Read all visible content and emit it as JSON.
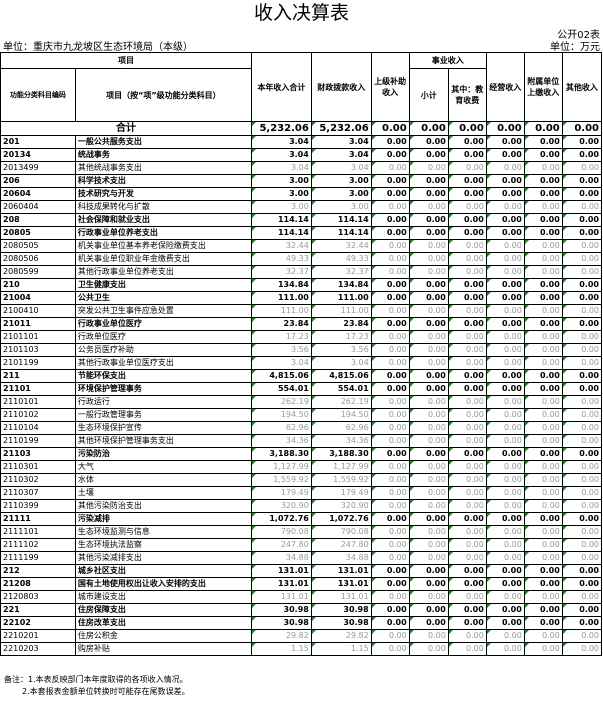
{
  "title": "收入决算表",
  "form_no": "公开02表",
  "unit_left": "单位：重庆市九龙坡区生态环境局（本级）",
  "unit_right": "单位：万元",
  "headers": {
    "item": "项目",
    "code": "功能分类科目编码",
    "name": "项目（按“项”级功能分类科目）",
    "total": "本年收入合计",
    "fiscal": "财政拨款收入",
    "superior": "上级补助收入",
    "business": "事业收入",
    "subtotal": "小计",
    "education": "其中：教育收费",
    "operating": "经营收入",
    "affiliated": "附属单位上缴收入",
    "other": "其他收入"
  },
  "total_row": {
    "label": "合计",
    "values": [
      "5,232.06",
      "5,232.06",
      "0.00",
      "0.00",
      "0.00",
      "0.00",
      "0.00",
      "0.00"
    ]
  },
  "rows": [
    {
      "level": 1,
      "code": "201",
      "name": "一般公共服务支出",
      "total": "3.04",
      "fiscal": "3.04"
    },
    {
      "level": 2,
      "code": "20134",
      "name": "统战事务",
      "total": "3.04",
      "fiscal": "3.04"
    },
    {
      "level": 3,
      "code": "2013499",
      "name": "其他统战事务支出",
      "total": "3.04",
      "fiscal": "3.04"
    },
    {
      "level": 1,
      "code": "206",
      "name": "科学技术支出",
      "total": "3.00",
      "fiscal": "3.00"
    },
    {
      "level": 2,
      "code": "20604",
      "name": "技术研究与开发",
      "total": "3.00",
      "fiscal": "3.00"
    },
    {
      "level": 3,
      "code": "2060404",
      "name": "科技成果转化与扩散",
      "total": "3.00",
      "fiscal": "3.00"
    },
    {
      "level": 1,
      "code": "208",
      "name": "社会保障和就业支出",
      "total": "114.14",
      "fiscal": "114.14"
    },
    {
      "level": 2,
      "code": "20805",
      "name": "行政事业单位养老支出",
      "total": "114.14",
      "fiscal": "114.14"
    },
    {
      "level": 3,
      "code": "2080505",
      "name": "机关事业单位基本养老保险缴费支出",
      "total": "32.44",
      "fiscal": "32.44"
    },
    {
      "level": 3,
      "code": "2080506",
      "name": "机关事业单位职业年金缴费支出",
      "total": "49.33",
      "fiscal": "49.33"
    },
    {
      "level": 3,
      "code": "2080599",
      "name": "其他行政事业单位养老支出",
      "total": "32.37",
      "fiscal": "32.37"
    },
    {
      "level": 1,
      "code": "210",
      "name": "卫生健康支出",
      "total": "134.84",
      "fiscal": "134.84"
    },
    {
      "level": 2,
      "code": "21004",
      "name": "公共卫生",
      "total": "111.00",
      "fiscal": "111.00"
    },
    {
      "level": 3,
      "code": "2100410",
      "name": "突发公共卫生事件应急处置",
      "total": "111.00",
      "fiscal": "111.00"
    },
    {
      "level": 2,
      "code": "21011",
      "name": "行政事业单位医疗",
      "total": "23.84",
      "fiscal": "23.84"
    },
    {
      "level": 3,
      "code": "2101101",
      "name": "行政单位医疗",
      "total": "17.23",
      "fiscal": "17.23"
    },
    {
      "level": 3,
      "code": "2101103",
      "name": "公务员医疗补助",
      "total": "3.56",
      "fiscal": "3.56"
    },
    {
      "level": 3,
      "code": "2101199",
      "name": "其他行政事业单位医疗支出",
      "total": "3.04",
      "fiscal": "3.04"
    },
    {
      "level": 1,
      "code": "211",
      "name": "节能环保支出",
      "total": "4,815.06",
      "fiscal": "4,815.06"
    },
    {
      "level": 2,
      "code": "21101",
      "name": "环境保护管理事务",
      "total": "554.01",
      "fiscal": "554.01"
    },
    {
      "level": 3,
      "code": "2110101",
      "name": "行政运行",
      "total": "262.19",
      "fiscal": "262.19"
    },
    {
      "level": 3,
      "code": "2110102",
      "name": "一般行政管理事务",
      "total": "194.50",
      "fiscal": "194.50"
    },
    {
      "level": 3,
      "code": "2110104",
      "name": "生态环境保护宣传",
      "total": "62.96",
      "fiscal": "62.96"
    },
    {
      "level": 3,
      "code": "2110199",
      "name": "其他环境保护管理事务支出",
      "total": "34.36",
      "fiscal": "34.36"
    },
    {
      "level": 2,
      "code": "21103",
      "name": "污染防治",
      "total": "3,188.30",
      "fiscal": "3,188.30"
    },
    {
      "level": 3,
      "code": "2110301",
      "name": "大气",
      "total": "1,127.99",
      "fiscal": "1,127.99"
    },
    {
      "level": 3,
      "code": "2110302",
      "name": "水体",
      "total": "1,559.92",
      "fiscal": "1,559.92"
    },
    {
      "level": 3,
      "code": "2110307",
      "name": "土壤",
      "total": "179.49",
      "fiscal": "179.49"
    },
    {
      "level": 3,
      "code": "2110399",
      "name": "其他污染防治支出",
      "total": "320.90",
      "fiscal": "320.90"
    },
    {
      "level": 2,
      "code": "21111",
      "name": "污染减排",
      "total": "1,072.76",
      "fiscal": "1,072.76"
    },
    {
      "level": 3,
      "code": "2111101",
      "name": "生态环境监测与信息",
      "total": "790.08",
      "fiscal": "790.08"
    },
    {
      "level": 3,
      "code": "2111102",
      "name": "生态环境执法监察",
      "total": "247.80",
      "fiscal": "247.80"
    },
    {
      "level": 3,
      "code": "2111199",
      "name": "其他污染减排支出",
      "total": "34.88",
      "fiscal": "34.88"
    },
    {
      "level": 1,
      "code": "212",
      "name": "城乡社区支出",
      "total": "131.01",
      "fiscal": "131.01"
    },
    {
      "level": 2,
      "code": "21208",
      "name": "国有土地使用权出让收入安排的支出",
      "total": "131.01",
      "fiscal": "131.01"
    },
    {
      "level": 3,
      "code": "2120803",
      "name": "城市建设支出",
      "total": "131.01",
      "fiscal": "131.01"
    },
    {
      "level": 1,
      "code": "221",
      "name": "住房保障支出",
      "total": "30.98",
      "fiscal": "30.98"
    },
    {
      "level": 2,
      "code": "22102",
      "name": "住房改革支出",
      "total": "30.98",
      "fiscal": "30.98"
    },
    {
      "level": 3,
      "code": "2210201",
      "name": "住房公积金",
      "total": "29.82",
      "fiscal": "29.82"
    },
    {
      "level": 3,
      "code": "2210203",
      "name": "购房补贴",
      "total": "1.15",
      "fiscal": "1.15"
    }
  ],
  "zero_value": "0.00",
  "notes": [
    "备注：1.本表反映部门本年度取得的各项收入情况。",
    "2.本套报表金额单位转换时可能存在尾数误差。"
  ]
}
